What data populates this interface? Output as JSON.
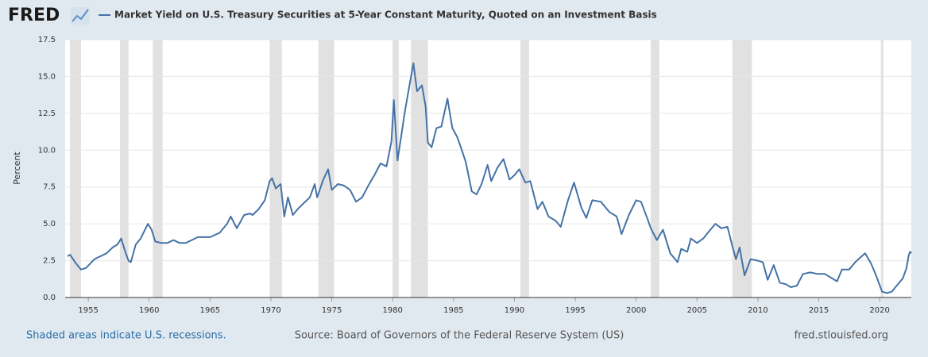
{
  "chart_data": {
    "type": "line",
    "logo": "FRED",
    "title": "Market Yield on U.S. Treasury Securities at 5-Year Constant Maturity, Quoted on an Investment Basis",
    "y_label": "Percent",
    "footer_left": "Shaded areas indicate U.S. recessions.",
    "source": "Source: Board of Governors of the Federal Reserve System (US)",
    "url": "fred.stlouisfed.org",
    "color": "#4572a7",
    "recession_color": "#e1e1e1",
    "xlim": [
      1953.1,
      2022.6
    ],
    "xticks": [
      1955,
      1960,
      1965,
      1970,
      1975,
      1980,
      1985,
      1990,
      1995,
      2000,
      2005,
      2010,
      2015,
      2020
    ],
    "ylim": [
      0,
      17.5
    ],
    "yticks": [
      {
        "value": 0,
        "label": "0.0"
      },
      2.5,
      {
        "value": 5,
        "label": "5.0"
      },
      7.5,
      {
        "value": 10,
        "label": "10.0"
      },
      12.5,
      {
        "value": 15,
        "label": "15.0"
      },
      17.5
    ],
    "grid": true,
    "recessions": [
      [
        1953.5,
        1954.4
      ],
      [
        1957.6,
        1958.3
      ],
      [
        1960.3,
        1961.1
      ],
      [
        1969.9,
        1970.9
      ],
      [
        1973.9,
        1975.2
      ],
      [
        1980.0,
        1980.5
      ],
      [
        1981.5,
        1982.9
      ],
      [
        1990.5,
        1991.2
      ],
      [
        2001.2,
        2001.9
      ],
      [
        2007.9,
        2009.5
      ],
      [
        2020.1,
        2020.3
      ]
    ],
    "x": [
      1953.3,
      1953.5,
      1954.0,
      1954.4,
      1954.8,
      1955.5,
      1956.0,
      1956.5,
      1957.0,
      1957.4,
      1957.7,
      1958.0,
      1958.3,
      1958.5,
      1958.9,
      1959.3,
      1959.9,
      1960.2,
      1960.5,
      1961.0,
      1961.5,
      1962.0,
      1962.5,
      1963.0,
      1963.5,
      1964.0,
      1965.0,
      1965.8,
      1966.4,
      1966.7,
      1967.2,
      1967.8,
      1968.3,
      1968.5,
      1969.0,
      1969.5,
      1969.9,
      1970.1,
      1970.4,
      1970.8,
      1971.1,
      1971.4,
      1971.8,
      1972.2,
      1972.7,
      1973.2,
      1973.6,
      1973.8,
      1974.3,
      1974.7,
      1975.0,
      1975.5,
      1976.0,
      1976.5,
      1977.0,
      1977.5,
      1978.0,
      1978.5,
      1979.0,
      1979.5,
      1979.9,
      1980.1,
      1980.4,
      1980.8,
      1981.0,
      1981.4,
      1981.7,
      1982.0,
      1982.4,
      1982.7,
      1982.9,
      1983.2,
      1983.6,
      1984.0,
      1984.5,
      1984.9,
      1985.3,
      1985.6,
      1986.0,
      1986.5,
      1986.9,
      1987.3,
      1987.8,
      1988.1,
      1988.6,
      1989.1,
      1989.6,
      1990.0,
      1990.4,
      1990.9,
      1991.3,
      1991.9,
      1992.3,
      1992.8,
      1993.4,
      1993.8,
      1994.4,
      1994.9,
      1995.5,
      1995.9,
      1996.4,
      1997.1,
      1997.8,
      1998.4,
      1998.8,
      1999.4,
      2000.0,
      2000.4,
      2000.9,
      2001.2,
      2001.7,
      2002.2,
      2002.8,
      2003.4,
      2003.7,
      2004.2,
      2004.5,
      2005.0,
      2005.5,
      2006.5,
      2007.0,
      2007.5,
      2007.9,
      2008.2,
      2008.5,
      2008.9,
      2009.4,
      2010.0,
      2010.4,
      2010.8,
      2011.3,
      2011.8,
      2012.3,
      2012.7,
      2013.2,
      2013.7,
      2014.3,
      2014.9,
      2015.5,
      2016.5,
      2016.9,
      2017.5,
      2018.0,
      2018.8,
      2019.3,
      2019.7,
      2020.2,
      2020.6,
      2021.0,
      2021.4,
      2021.9,
      2022.2,
      2022.4,
      2022.5,
      2022.6
    ],
    "values": [
      2.8,
      2.9,
      2.3,
      1.9,
      2.0,
      2.6,
      2.8,
      3.0,
      3.4,
      3.6,
      4.0,
      3.2,
      2.5,
      2.4,
      3.6,
      4.0,
      5.0,
      4.6,
      3.8,
      3.7,
      3.7,
      3.9,
      3.7,
      3.7,
      3.9,
      4.1,
      4.1,
      4.4,
      5.0,
      5.5,
      4.7,
      5.6,
      5.7,
      5.6,
      6.0,
      6.6,
      7.9,
      8.1,
      7.4,
      7.7,
      5.5,
      6.8,
      5.6,
      6.0,
      6.4,
      6.8,
      7.7,
      6.8,
      8.0,
      8.7,
      7.3,
      7.7,
      7.6,
      7.3,
      6.5,
      6.8,
      7.6,
      8.3,
      9.1,
      8.9,
      10.6,
      13.4,
      9.3,
      11.5,
      12.6,
      14.5,
      15.9,
      14.0,
      14.4,
      13.0,
      10.5,
      10.2,
      11.5,
      11.6,
      13.5,
      11.5,
      10.9,
      10.2,
      9.2,
      7.2,
      7.0,
      7.7,
      9.0,
      7.9,
      8.8,
      9.4,
      8.0,
      8.3,
      8.7,
      7.8,
      7.9,
      6.0,
      6.5,
      5.5,
      5.2,
      4.8,
      6.6,
      7.8,
      6.1,
      5.4,
      6.6,
      6.5,
      5.8,
      5.5,
      4.3,
      5.6,
      6.6,
      6.5,
      5.4,
      4.7,
      3.9,
      4.6,
      3.0,
      2.4,
      3.3,
      3.1,
      4.0,
      3.7,
      4.0,
      5.0,
      4.7,
      4.8,
      3.5,
      2.6,
      3.4,
      1.5,
      2.6,
      2.5,
      2.4,
      1.2,
      2.2,
      1.0,
      0.9,
      0.7,
      0.8,
      1.6,
      1.7,
      1.6,
      1.6,
      1.1,
      1.9,
      1.9,
      2.4,
      3.0,
      2.3,
      1.5,
      0.4,
      0.3,
      0.4,
      0.8,
      1.3,
      2.0,
      2.9,
      3.1,
      3.0
    ]
  }
}
